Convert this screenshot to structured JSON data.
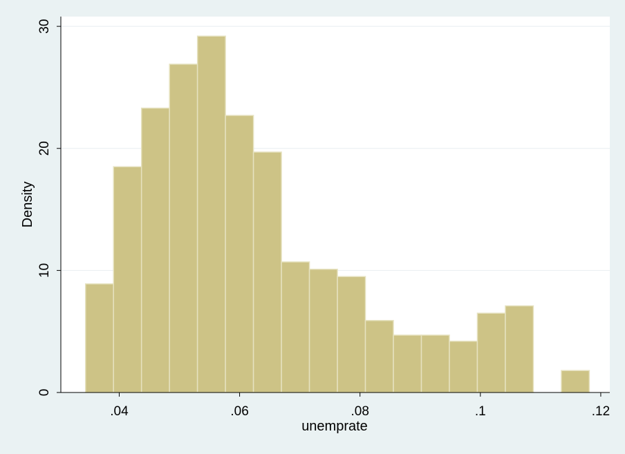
{
  "chart_data": {
    "type": "bar",
    "subtype": "histogram",
    "xlabel": "unemprate",
    "ylabel": "Density",
    "xlim": [
      0.0303,
      0.1215
    ],
    "ylim": [
      0,
      30.8
    ],
    "x_ticks": [
      {
        "value": 0.04,
        "label": ".04"
      },
      {
        "value": 0.06,
        "label": ".06"
      },
      {
        "value": 0.08,
        "label": ".08"
      },
      {
        "value": 0.1,
        "label": ".1"
      },
      {
        "value": 0.12,
        "label": ".12"
      }
    ],
    "y_ticks": [
      {
        "value": 0,
        "label": "0"
      },
      {
        "value": 10,
        "label": "10"
      },
      {
        "value": 20,
        "label": "20"
      },
      {
        "value": 30,
        "label": "30"
      }
    ],
    "grid": true,
    "bin_start": 0.0344,
    "bin_width": 0.00465,
    "values": [
      8.9,
      18.5,
      23.3,
      26.9,
      29.2,
      22.7,
      19.7,
      10.7,
      10.1,
      9.5,
      5.9,
      4.7,
      4.7,
      4.2,
      6.5,
      7.1,
      0,
      1.8
    ],
    "colors": {
      "bar_fill": "#cdc386",
      "bar_edge": "#e6e2c0",
      "plot_bg": "#ffffff",
      "outer_bg": "#eaf2f3",
      "grid": "#e8eef0"
    }
  }
}
